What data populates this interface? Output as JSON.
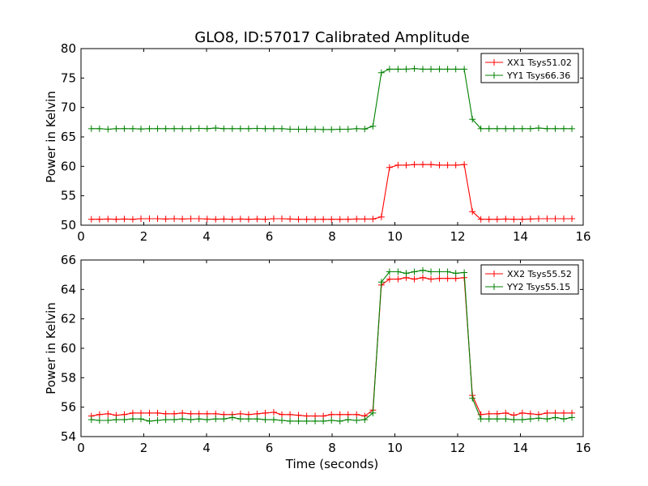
{
  "title": "GLO8, ID:57017 Calibrated Amplitude",
  "xlabel": "Time (seconds)",
  "chart_data": [
    {
      "type": "line",
      "ylabel": "Power in Kelvin",
      "xlim": [
        0,
        16
      ],
      "ylim": [
        50,
        80
      ],
      "xticks": [
        0,
        2,
        4,
        6,
        8,
        10,
        12,
        14,
        16
      ],
      "yticks": [
        50,
        55,
        60,
        65,
        70,
        75,
        80
      ],
      "grid": false,
      "legend": "top-right",
      "x": [
        0.33,
        0.59,
        0.86,
        1.12,
        1.38,
        1.65,
        1.91,
        2.18,
        2.44,
        2.7,
        2.97,
        3.23,
        3.5,
        3.76,
        4.02,
        4.29,
        4.55,
        4.82,
        5.08,
        5.34,
        5.61,
        5.87,
        6.14,
        6.4,
        6.66,
        6.93,
        7.19,
        7.46,
        7.72,
        7.98,
        8.25,
        8.51,
        8.78,
        9.04,
        9.3,
        9.57,
        9.83,
        10.1,
        10.36,
        10.62,
        10.89,
        11.15,
        11.42,
        11.68,
        11.94,
        12.21,
        12.47,
        12.74,
        13.0,
        13.26,
        13.53,
        13.79,
        14.06,
        14.32,
        14.58,
        14.85,
        15.11,
        15.38,
        15.64
      ],
      "series": [
        {
          "name": "XX1 Tsys51.02",
          "color": "#ff0000",
          "values": [
            51.0,
            51.0,
            51.05,
            51.0,
            51.05,
            51.0,
            51.1,
            51.1,
            51.1,
            51.05,
            51.1,
            51.05,
            51.1,
            51.1,
            51.05,
            51.0,
            51.05,
            51.0,
            51.05,
            51.0,
            51.05,
            51.0,
            51.1,
            51.1,
            51.05,
            51.0,
            51.0,
            51.0,
            51.0,
            51.0,
            51.0,
            51.0,
            51.05,
            51.05,
            51.05,
            51.4,
            59.8,
            60.2,
            60.2,
            60.3,
            60.3,
            60.3,
            60.2,
            60.2,
            60.2,
            60.3,
            52.3,
            51.0,
            51.0,
            51.0,
            51.05,
            51.0,
            51.0,
            51.05,
            51.1,
            51.1,
            51.1,
            51.1,
            51.1
          ]
        },
        {
          "name": "YY1 Tsys66.36",
          "color": "#008000",
          "values": [
            66.4,
            66.4,
            66.3,
            66.4,
            66.4,
            66.4,
            66.35,
            66.4,
            66.4,
            66.4,
            66.4,
            66.4,
            66.4,
            66.45,
            66.4,
            66.5,
            66.4,
            66.4,
            66.4,
            66.4,
            66.45,
            66.4,
            66.4,
            66.4,
            66.3,
            66.3,
            66.3,
            66.3,
            66.25,
            66.25,
            66.3,
            66.3,
            66.4,
            66.35,
            66.8,
            75.9,
            76.5,
            76.5,
            76.5,
            76.6,
            76.5,
            76.5,
            76.5,
            76.5,
            76.5,
            76.5,
            68.0,
            66.4,
            66.4,
            66.4,
            66.4,
            66.4,
            66.4,
            66.4,
            66.5,
            66.4,
            66.4,
            66.4,
            66.4
          ]
        }
      ]
    },
    {
      "type": "line",
      "ylabel": "Power in Kelvin",
      "xlabel": "Time (seconds)",
      "xlim": [
        0,
        16
      ],
      "ylim": [
        54,
        66
      ],
      "xticks": [
        0,
        2,
        4,
        6,
        8,
        10,
        12,
        14,
        16
      ],
      "yticks": [
        54,
        56,
        58,
        60,
        62,
        64,
        66
      ],
      "grid": false,
      "legend": "top-right",
      "x": [
        0.33,
        0.59,
        0.86,
        1.12,
        1.38,
        1.65,
        1.91,
        2.18,
        2.44,
        2.7,
        2.97,
        3.23,
        3.5,
        3.76,
        4.02,
        4.29,
        4.55,
        4.82,
        5.08,
        5.34,
        5.61,
        5.87,
        6.14,
        6.4,
        6.66,
        6.93,
        7.19,
        7.46,
        7.72,
        7.98,
        8.25,
        8.51,
        8.78,
        9.04,
        9.3,
        9.57,
        9.83,
        10.1,
        10.36,
        10.62,
        10.89,
        11.15,
        11.42,
        11.68,
        11.94,
        12.21,
        12.47,
        12.74,
        13.0,
        13.26,
        13.53,
        13.79,
        14.06,
        14.32,
        14.58,
        14.85,
        15.11,
        15.38,
        15.64
      ],
      "series": [
        {
          "name": "XX2 Tsys55.52",
          "color": "#ff0000",
          "values": [
            55.4,
            55.5,
            55.55,
            55.45,
            55.5,
            55.6,
            55.6,
            55.6,
            55.6,
            55.55,
            55.55,
            55.6,
            55.55,
            55.55,
            55.55,
            55.55,
            55.5,
            55.5,
            55.55,
            55.5,
            55.55,
            55.6,
            55.65,
            55.5,
            55.5,
            55.45,
            55.4,
            55.4,
            55.4,
            55.5,
            55.5,
            55.5,
            55.5,
            55.4,
            55.8,
            64.3,
            64.7,
            64.7,
            64.8,
            64.7,
            64.8,
            64.7,
            64.75,
            64.75,
            64.75,
            64.8,
            56.8,
            55.5,
            55.55,
            55.55,
            55.6,
            55.45,
            55.6,
            55.55,
            55.5,
            55.6,
            55.6,
            55.6,
            55.6
          ]
        },
        {
          "name": "YY2 Tsys55.15",
          "color": "#008000",
          "values": [
            55.15,
            55.1,
            55.1,
            55.15,
            55.15,
            55.2,
            55.2,
            55.05,
            55.1,
            55.15,
            55.15,
            55.2,
            55.15,
            55.2,
            55.15,
            55.2,
            55.2,
            55.3,
            55.2,
            55.2,
            55.2,
            55.15,
            55.15,
            55.1,
            55.05,
            55.05,
            55.05,
            55.05,
            55.05,
            55.1,
            55.05,
            55.15,
            55.1,
            55.15,
            55.6,
            64.5,
            65.2,
            65.2,
            65.1,
            65.2,
            65.3,
            65.2,
            65.2,
            65.2,
            65.1,
            65.15,
            56.6,
            55.2,
            55.2,
            55.2,
            55.2,
            55.15,
            55.15,
            55.2,
            55.25,
            55.2,
            55.3,
            55.2,
            55.3
          ]
        }
      ]
    }
  ]
}
